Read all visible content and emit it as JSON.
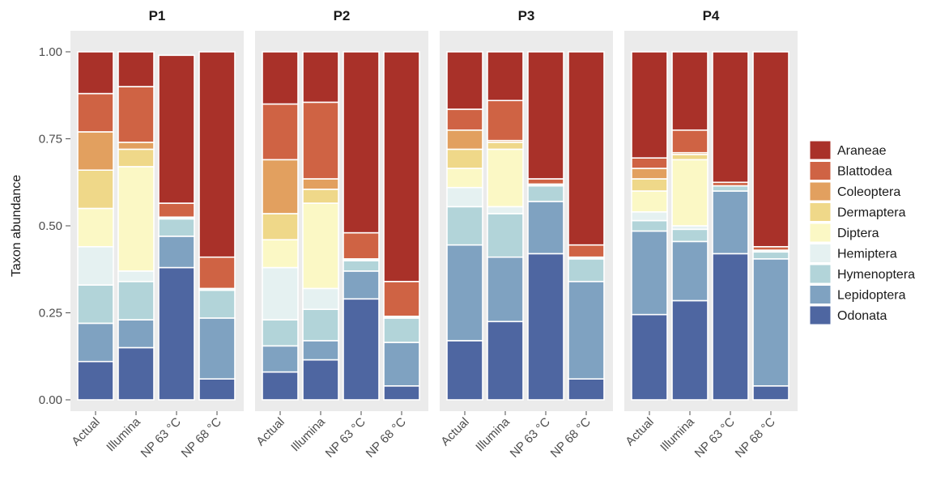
{
  "chart_data": {
    "type": "bar",
    "stacked": true,
    "ylabel": "Taxon abundance",
    "ylim": [
      0,
      1
    ],
    "yticks": [
      "0.00",
      "0.25",
      "0.50",
      "0.75",
      "1.00"
    ],
    "categories": [
      "Actual",
      "Illumina",
      "NP 63 °C",
      "NP 68 °C"
    ],
    "legend_position": "right",
    "taxa": [
      "Araneae",
      "Blattodea",
      "Coleoptera",
      "Dermaptera",
      "Diptera",
      "Hemiptera",
      "Hymenoptera",
      "Lepidoptera",
      "Odonata"
    ],
    "colors": {
      "Araneae": "#a93129",
      "Blattodea": "#cf6344",
      "Coleoptera": "#e2a05f",
      "Dermaptera": "#efd889",
      "Diptera": "#fbf8c5",
      "Hemiptera": "#e5f1f1",
      "Hymenoptera": "#b2d4d9",
      "Lepidoptera": "#7fa2c1",
      "Odonata": "#4e66a1"
    },
    "panels": [
      {
        "title": "P1",
        "bars": [
          {
            "Odonata": 0.11,
            "Lepidoptera": 0.11,
            "Hymenoptera": 0.11,
            "Hemiptera": 0.11,
            "Diptera": 0.11,
            "Dermaptera": 0.11,
            "Coleoptera": 0.11,
            "Blattodea": 0.11,
            "Araneae": 0.12
          },
          {
            "Odonata": 0.15,
            "Lepidoptera": 0.08,
            "Hymenoptera": 0.11,
            "Hemiptera": 0.03,
            "Diptera": 0.3,
            "Dermaptera": 0.05,
            "Coleoptera": 0.02,
            "Blattodea": 0.16,
            "Araneae": 0.1
          },
          {
            "Odonata": 0.38,
            "Lepidoptera": 0.09,
            "Hymenoptera": 0.05,
            "Hemiptera": 0.005,
            "Diptera": 0.0,
            "Dermaptera": 0.0,
            "Coleoptera": 0.0,
            "Blattodea": 0.04,
            "Araneae": 0.425
          },
          {
            "Odonata": 0.06,
            "Lepidoptera": 0.175,
            "Hymenoptera": 0.08,
            "Hemiptera": 0.005,
            "Diptera": 0.0,
            "Dermaptera": 0.0,
            "Coleoptera": 0.0,
            "Blattodea": 0.09,
            "Araneae": 0.59
          }
        ]
      },
      {
        "title": "P2",
        "bars": [
          {
            "Odonata": 0.08,
            "Lepidoptera": 0.075,
            "Hymenoptera": 0.075,
            "Hemiptera": 0.15,
            "Diptera": 0.08,
            "Dermaptera": 0.075,
            "Coleoptera": 0.155,
            "Blattodea": 0.16,
            "Araneae": 0.15
          },
          {
            "Odonata": 0.115,
            "Lepidoptera": 0.055,
            "Hymenoptera": 0.09,
            "Hemiptera": 0.06,
            "Diptera": 0.245,
            "Dermaptera": 0.04,
            "Coleoptera": 0.03,
            "Blattodea": 0.22,
            "Araneae": 0.145
          },
          {
            "Odonata": 0.29,
            "Lepidoptera": 0.08,
            "Hymenoptera": 0.03,
            "Hemiptera": 0.005,
            "Diptera": 0.0,
            "Dermaptera": 0.0,
            "Coleoptera": 0.0,
            "Blattodea": 0.075,
            "Araneae": 0.52
          },
          {
            "Odonata": 0.04,
            "Lepidoptera": 0.125,
            "Hymenoptera": 0.07,
            "Hemiptera": 0.005,
            "Diptera": 0.0,
            "Dermaptera": 0.0,
            "Coleoptera": 0.0,
            "Blattodea": 0.1,
            "Araneae": 0.66
          }
        ]
      },
      {
        "title": "P3",
        "bars": [
          {
            "Odonata": 0.17,
            "Lepidoptera": 0.275,
            "Hymenoptera": 0.11,
            "Hemiptera": 0.055,
            "Diptera": 0.055,
            "Dermaptera": 0.055,
            "Coleoptera": 0.055,
            "Blattodea": 0.06,
            "Araneae": 0.165
          },
          {
            "Odonata": 0.225,
            "Lepidoptera": 0.185,
            "Hymenoptera": 0.125,
            "Hemiptera": 0.02,
            "Diptera": 0.165,
            "Dermaptera": 0.02,
            "Coleoptera": 0.005,
            "Blattodea": 0.115,
            "Araneae": 0.14
          },
          {
            "Odonata": 0.42,
            "Lepidoptera": 0.15,
            "Hymenoptera": 0.045,
            "Hemiptera": 0.005,
            "Diptera": 0.0,
            "Dermaptera": 0.0,
            "Coleoptera": 0.0,
            "Blattodea": 0.015,
            "Araneae": 0.365
          },
          {
            "Odonata": 0.06,
            "Lepidoptera": 0.28,
            "Hymenoptera": 0.065,
            "Hemiptera": 0.005,
            "Diptera": 0.0,
            "Dermaptera": 0.0,
            "Coleoptera": 0.0,
            "Blattodea": 0.035,
            "Araneae": 0.555
          }
        ]
      },
      {
        "title": "P4",
        "bars": [
          {
            "Odonata": 0.245,
            "Lepidoptera": 0.24,
            "Hymenoptera": 0.03,
            "Hemiptera": 0.025,
            "Diptera": 0.06,
            "Dermaptera": 0.035,
            "Coleoptera": 0.03,
            "Blattodea": 0.03,
            "Araneae": 0.305
          },
          {
            "Odonata": 0.285,
            "Lepidoptera": 0.17,
            "Hymenoptera": 0.035,
            "Hemiptera": 0.01,
            "Diptera": 0.19,
            "Dermaptera": 0.015,
            "Coleoptera": 0.005,
            "Blattodea": 0.065,
            "Araneae": 0.225
          },
          {
            "Odonata": 0.42,
            "Lepidoptera": 0.18,
            "Hymenoptera": 0.015,
            "Hemiptera": 0.0,
            "Diptera": 0.0,
            "Dermaptera": 0.0,
            "Coleoptera": 0.0,
            "Blattodea": 0.01,
            "Araneae": 0.375
          },
          {
            "Odonata": 0.04,
            "Lepidoptera": 0.365,
            "Hymenoptera": 0.02,
            "Hemiptera": 0.005,
            "Diptera": 0.0,
            "Dermaptera": 0.0,
            "Coleoptera": 0.0,
            "Blattodea": 0.01,
            "Araneae": 0.56
          }
        ]
      }
    ]
  }
}
